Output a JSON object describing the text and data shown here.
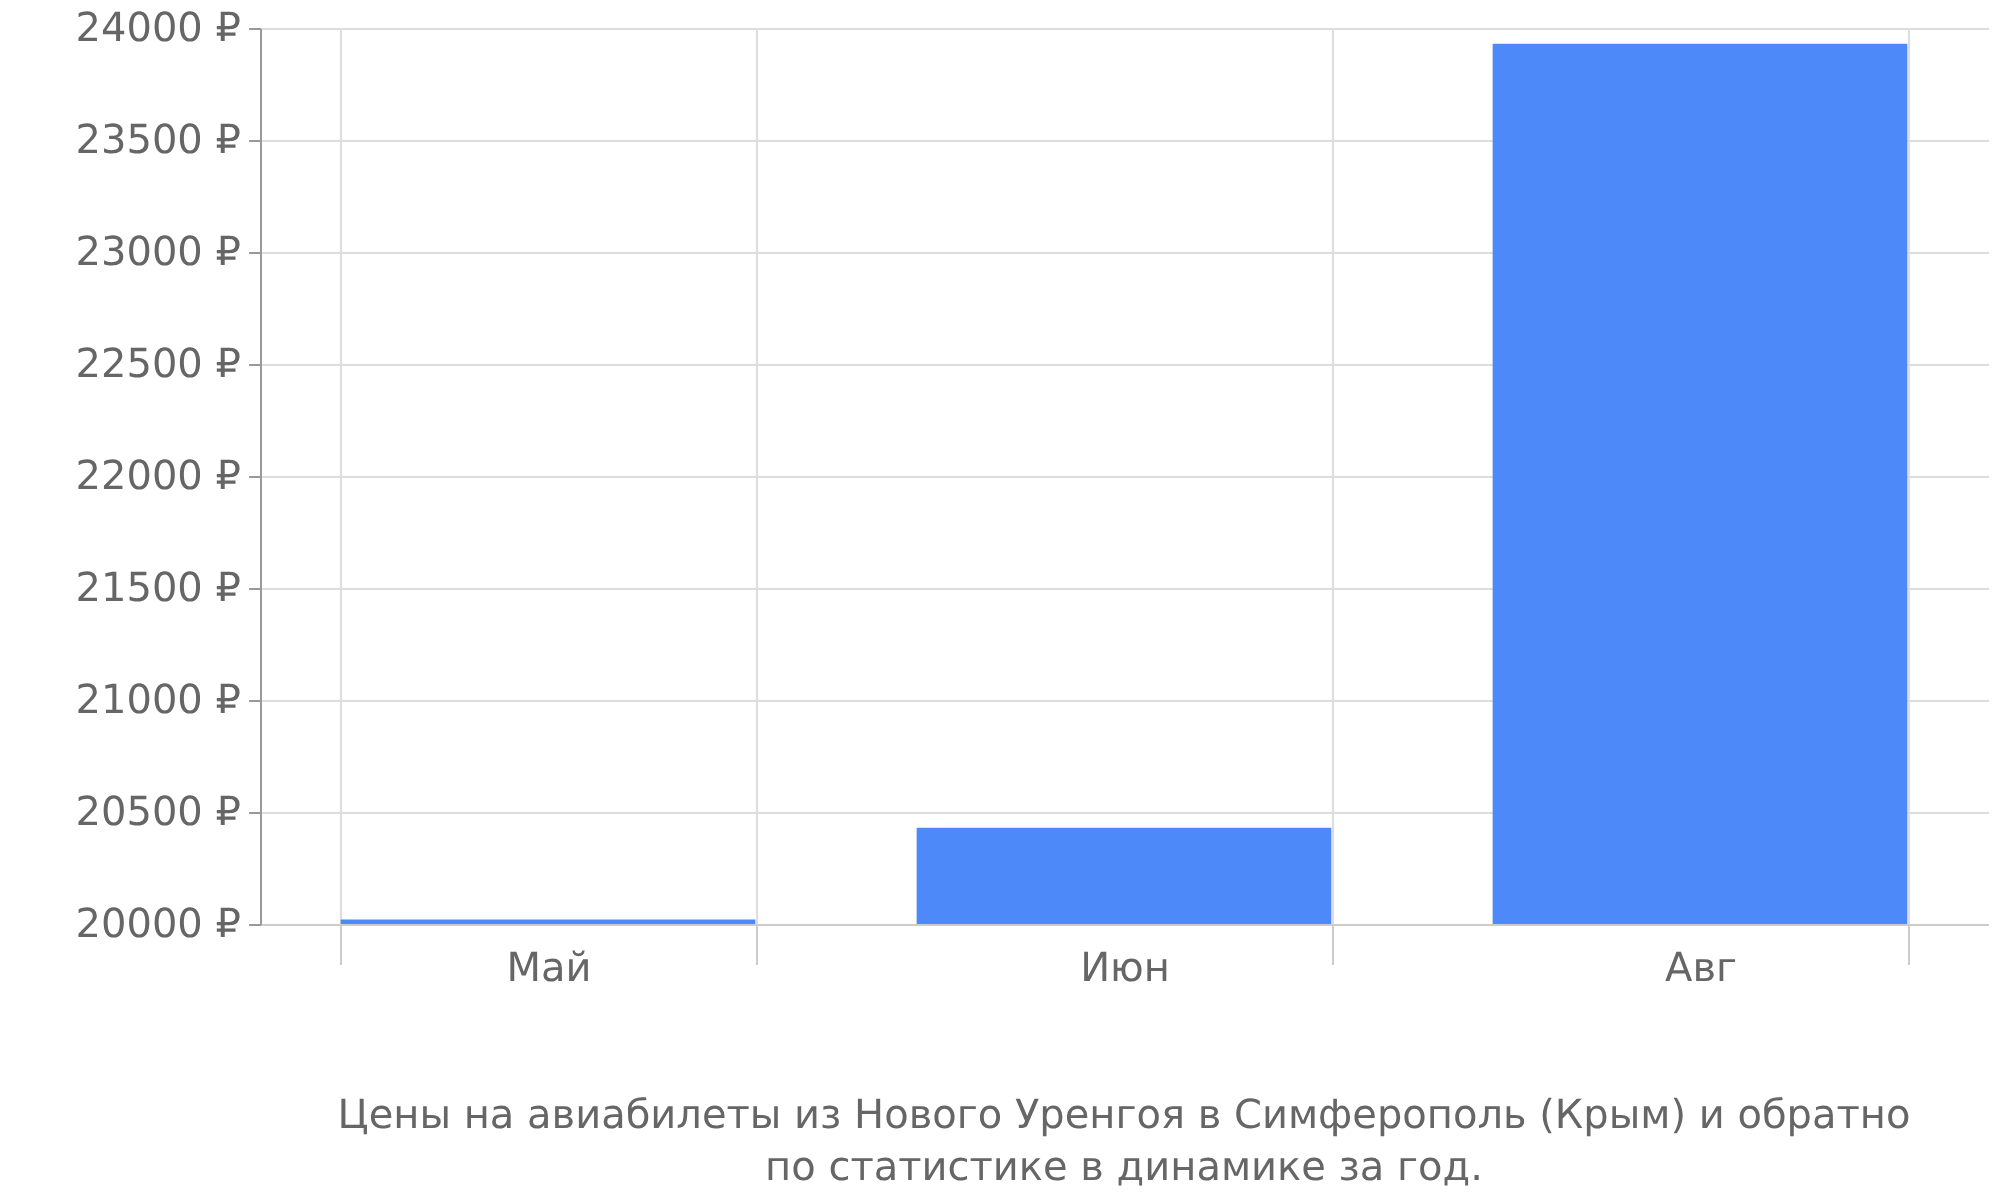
{
  "chart_data": {
    "type": "bar",
    "title": "Цены на авиабилеты из Нового Уренгоя в Симферополь (Крым) и обратно\nпо статистике в динамике за год.",
    "categories": [
      "Май",
      "Июн",
      "Авг"
    ],
    "values": [
      20020,
      20430,
      23930
    ],
    "color": "#4d89f9",
    "ylim": [
      20000,
      24000
    ],
    "yticks": [
      {
        "value": 20000,
        "label": "20000 ₽"
      },
      {
        "value": 20500,
        "label": "20500 ₽"
      },
      {
        "value": 21000,
        "label": "21000 ₽"
      },
      {
        "value": 21500,
        "label": "21500 ₽"
      },
      {
        "value": 22000,
        "label": "22000 ₽"
      },
      {
        "value": 22500,
        "label": "22500 ₽"
      },
      {
        "value": 23000,
        "label": "23000 ₽"
      },
      {
        "value": 23500,
        "label": "23500 ₽"
      },
      {
        "value": 24000,
        "label": "24000 ₽"
      }
    ],
    "grid": true
  }
}
